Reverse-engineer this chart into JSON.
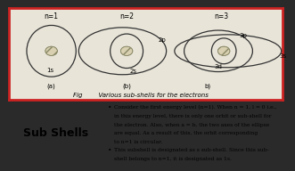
{
  "outer_bg": "#2a2a2a",
  "top_bg": "#e8e4d8",
  "top_border_color": "#cc2222",
  "bottom_left_bg": "#f0f0f0",
  "bottom_right_bg": "#fdf5e8",
  "bottom_right_border": "#cc8833",
  "bottom_left_border": "#aaaaaa",
  "sub_shells_label": "Sub Shells",
  "fig_caption": "Fig        Various sub-shells for the electrons",
  "n1_label": "n=1",
  "n2_label": "n=2",
  "n3_label": "n=3",
  "a_label": "(a)",
  "b_label": "(b)",
  "c_label": "b)",
  "orbit_labels_n1": [
    "1s"
  ],
  "orbit_labels_n2": [
    "2p",
    "2s"
  ],
  "orbit_labels_n3": [
    "3d",
    "3p",
    "3s"
  ],
  "bullet1_line1": "Consider the first energy level (n=1). When n = 1, l = 0 i.e.,",
  "bullet1_line2": "in this energy level, there is only one orbit or sub-shell for",
  "bullet1_line3": "the electron. Also, when a = b, the two axes of the ellipse",
  "bullet1_line4": "are equal. As a result of this, the orbit corresponding",
  "bullet1_line5": "to n=1 is circular.",
  "bullet2_line1": "This subshell is designated as s sub-shell. Since this sub-",
  "bullet2_line2": "shell belongs to n=1, it is designated as 1s."
}
